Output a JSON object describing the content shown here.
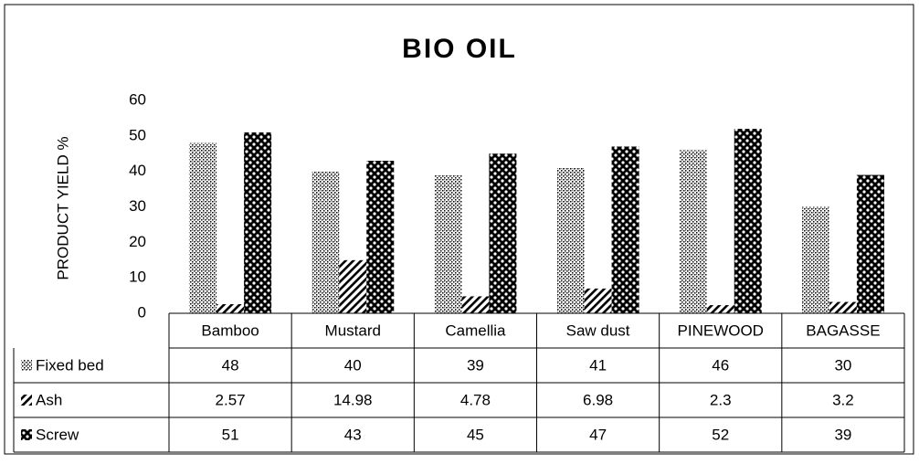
{
  "chart_data": {
    "type": "bar",
    "title": "BIO OIL",
    "y_label": "PRODUCT YIELD %",
    "categories": [
      "Bamboo",
      "Mustard",
      "Camellia",
      "Saw dust",
      "PINEWOOD",
      "BAGASSE"
    ],
    "series": [
      {
        "name": "Fixed bed",
        "color": "#000000",
        "values": [
          48,
          40,
          39,
          41,
          46,
          30
        ]
      },
      {
        "name": "Ash",
        "color": "#000000",
        "values": [
          2.57,
          14.98,
          4.78,
          6.98,
          2.3,
          3.2
        ]
      },
      {
        "name": "Screw",
        "color": "#000000",
        "values": [
          51,
          43,
          45,
          47,
          52,
          39
        ]
      }
    ],
    "ylim": [
      0,
      60
    ],
    "yticks": [
      0,
      10,
      20,
      30,
      40,
      50,
      60
    ],
    "grid": false,
    "data_table": true
  }
}
